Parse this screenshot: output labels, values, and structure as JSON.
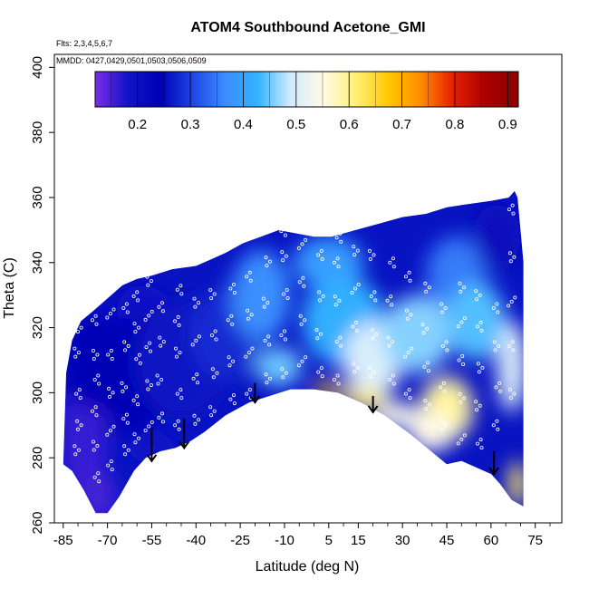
{
  "chart_data": {
    "type": "heatmap",
    "title": "ATOM4 Southbound Acetone_GMI",
    "notes": [
      "Flts: 2,3,4,5,6,7",
      "MMDD: 0427,0429,0501,0503,0506,0509"
    ],
    "xlabel": "Latitude (deg N)",
    "ylabel": "Theta (C)",
    "xlim": [
      -88,
      84
    ],
    "ylim": [
      260,
      404
    ],
    "xticks": [
      -85,
      -70,
      -55,
      -40,
      -25,
      -10,
      5,
      15,
      30,
      45,
      60,
      75
    ],
    "yticks": [
      260,
      280,
      300,
      320,
      340,
      360,
      380,
      400
    ],
    "colorbar": {
      "range": [
        0.12,
        0.92
      ],
      "ticks": [
        0.2,
        0.3,
        0.4,
        0.5,
        0.6,
        0.7,
        0.8,
        0.9
      ],
      "colors": [
        "#7a2ee8",
        "#1212c8",
        "#0000b4",
        "#1e46e6",
        "#3c8cff",
        "#32b4ff",
        "#d2ebff",
        "#fffae6",
        "#fff078",
        "#ffc800",
        "#ff8c00",
        "#e61e00",
        "#aa0000",
        "#8b0000"
      ]
    },
    "domain": {
      "bottom": [
        [
          -85,
          278
        ],
        [
          -82,
          276
        ],
        [
          -78,
          270
        ],
        [
          -74,
          263
        ],
        [
          -70,
          263
        ],
        [
          -66,
          268
        ],
        [
          -61,
          276
        ],
        [
          -57,
          280
        ],
        [
          -52,
          282
        ],
        [
          -47,
          283
        ],
        [
          -42,
          285
        ],
        [
          -37,
          288
        ],
        [
          -30,
          293
        ],
        [
          -22,
          297
        ],
        [
          -15,
          299
        ],
        [
          -8,
          301
        ],
        [
          0,
          301
        ],
        [
          8,
          300
        ],
        [
          16,
          297
        ],
        [
          24,
          293
        ],
        [
          33,
          287
        ],
        [
          41,
          281
        ],
        [
          45,
          278
        ],
        [
          50,
          279
        ],
        [
          55,
          277
        ],
        [
          60,
          275
        ],
        [
          63,
          272
        ],
        [
          67,
          267
        ],
        [
          71,
          265
        ]
      ],
      "top": [
        [
          -85,
          278
        ],
        [
          -84,
          306
        ],
        [
          -82,
          316
        ],
        [
          -79,
          322
        ],
        [
          -75,
          325
        ],
        [
          -70,
          329
        ],
        [
          -65,
          333
        ],
        [
          -60,
          335
        ],
        [
          -55,
          336
        ],
        [
          -48,
          338
        ],
        [
          -40,
          339
        ],
        [
          -35,
          341
        ],
        [
          -30,
          343
        ],
        [
          -24,
          346
        ],
        [
          -18,
          348
        ],
        [
          -12,
          350
        ],
        [
          -6,
          349
        ],
        [
          0,
          348
        ],
        [
          6,
          348
        ],
        [
          14,
          350
        ],
        [
          22,
          352
        ],
        [
          30,
          354
        ],
        [
          38,
          355
        ],
        [
          45,
          357
        ],
        [
          52,
          358
        ],
        [
          60,
          359
        ],
        [
          66,
          360
        ],
        [
          68,
          362
        ],
        [
          69,
          360
        ],
        [
          71,
          340
        ],
        [
          71,
          265
        ]
      ]
    },
    "field": [
      {
        "lat": -78,
        "theta": 285,
        "value": 0.16,
        "w": 8,
        "h": 18
      },
      {
        "lat": -73,
        "theta": 268,
        "value": 0.15,
        "w": 6,
        "h": 8
      },
      {
        "lat": -55,
        "theta": 283,
        "value": 0.18,
        "w": 6,
        "h": 4
      },
      {
        "lat": -58,
        "theta": 325,
        "value": 0.19,
        "w": 9,
        "h": 8
      },
      {
        "lat": -75,
        "theta": 310,
        "value": 0.24,
        "w": 10,
        "h": 15
      },
      {
        "lat": -62,
        "theta": 305,
        "value": 0.24,
        "w": 12,
        "h": 18
      },
      {
        "lat": -45,
        "theta": 310,
        "value": 0.26,
        "w": 16,
        "h": 18
      },
      {
        "lat": -30,
        "theta": 318,
        "value": 0.28,
        "w": 12,
        "h": 14
      },
      {
        "lat": -18,
        "theta": 330,
        "value": 0.37,
        "w": 10,
        "h": 14
      },
      {
        "lat": 5,
        "theta": 340,
        "value": 0.39,
        "w": 12,
        "h": 8
      },
      {
        "lat": 10,
        "theta": 322,
        "value": 0.42,
        "w": 14,
        "h": 14
      },
      {
        "lat": -12,
        "theta": 308,
        "value": 0.45,
        "w": 8,
        "h": 6
      },
      {
        "lat": 20,
        "theta": 310,
        "value": 0.5,
        "w": 10,
        "h": 12
      },
      {
        "lat": 35,
        "theta": 318,
        "value": 0.46,
        "w": 12,
        "h": 12
      },
      {
        "lat": 48,
        "theta": 336,
        "value": 0.35,
        "w": 10,
        "h": 12
      },
      {
        "lat": 62,
        "theta": 348,
        "value": 0.22,
        "w": 8,
        "h": 10
      },
      {
        "lat": 55,
        "theta": 322,
        "value": 0.44,
        "w": 10,
        "h": 12
      },
      {
        "lat": 67,
        "theta": 308,
        "value": 0.5,
        "w": 5,
        "h": 14
      },
      {
        "lat": 45,
        "theta": 295,
        "value": 0.59,
        "w": 9,
        "h": 10
      },
      {
        "lat": 40,
        "theta": 288,
        "value": 0.55,
        "w": 8,
        "h": 6
      },
      {
        "lat": 69,
        "theta": 272,
        "value": 0.62,
        "w": 3,
        "h": 7
      },
      {
        "lat": 5,
        "theta": 301,
        "value": 0.68,
        "w": 6,
        "h": 2
      },
      {
        "lat": 17,
        "theta": 298,
        "value": 0.62,
        "w": 8,
        "h": 3
      },
      {
        "lat": 28,
        "theta": 293,
        "value": 0.54,
        "w": 8,
        "h": 4
      }
    ],
    "flight_points": [
      {
        "lat": -80,
        "theta": [
          282,
          290,
          300,
          312,
          320
        ]
      },
      {
        "lat": -74,
        "theta": [
          274,
          284,
          294,
          304,
          312,
          322
        ]
      },
      {
        "lat": -69,
        "theta": [
          278,
          288,
          300,
          312,
          324,
          332
        ]
      },
      {
        "lat": -64,
        "theta": [
          282,
          292,
          302,
          314,
          326
        ]
      },
      {
        "lat": -60,
        "theta": [
          286,
          298,
          310,
          320,
          330
        ]
      },
      {
        "lat": -56,
        "theta": [
          290,
          302,
          314,
          324,
          334
        ]
      },
      {
        "lat": -52,
        "theta": [
          292,
          304,
          316,
          326
        ]
      },
      {
        "lat": -46,
        "theta": [
          290,
          300,
          312,
          322,
          332
        ]
      },
      {
        "lat": -40,
        "theta": [
          292,
          304,
          316,
          328
        ]
      },
      {
        "lat": -34,
        "theta": [
          294,
          306,
          318,
          330
        ]
      },
      {
        "lat": -28,
        "theta": [
          298,
          310,
          322,
          332
        ]
      },
      {
        "lat": -22,
        "theta": [
          300,
          312,
          324,
          336
        ]
      },
      {
        "lat": -16,
        "theta": [
          304,
          316,
          328,
          340
        ]
      },
      {
        "lat": -10,
        "theta": [
          306,
          318,
          330,
          342,
          350
        ]
      },
      {
        "lat": -4,
        "theta": [
          310,
          322,
          334,
          346
        ]
      },
      {
        "lat": 2,
        "theta": [
          306,
          318,
          330,
          342
        ]
      },
      {
        "lat": 8,
        "theta": [
          304,
          316,
          328,
          340,
          348
        ]
      },
      {
        "lat": 14,
        "theta": [
          308,
          320,
          332,
          344
        ]
      },
      {
        "lat": 20,
        "theta": [
          306,
          318,
          330,
          342
        ]
      },
      {
        "lat": 26,
        "theta": [
          304,
          316,
          328,
          340
        ]
      },
      {
        "lat": 32,
        "theta": [
          300,
          312,
          324,
          336
        ]
      },
      {
        "lat": 38,
        "theta": [
          296,
          308,
          320,
          332
        ]
      },
      {
        "lat": 44,
        "theta": [
          290,
          302,
          314,
          326
        ]
      },
      {
        "lat": 50,
        "theta": [
          286,
          298,
          310,
          322,
          332
        ]
      },
      {
        "lat": 56,
        "theta": [
          284,
          296,
          308,
          320,
          330
        ]
      },
      {
        "lat": 62,
        "theta": [
          290,
          302,
          314,
          326
        ]
      },
      {
        "lat": 67,
        "theta": [
          300,
          314,
          328,
          342,
          356
        ]
      }
    ],
    "arrows": [
      {
        "lat": -55,
        "theta_top": 289,
        "theta_bottom": 279
      },
      {
        "lat": -44,
        "theta_top": 292,
        "theta_bottom": 283
      },
      {
        "lat": -20,
        "theta_top": 303,
        "theta_bottom": 297
      },
      {
        "lat": 20,
        "theta_top": 299,
        "theta_bottom": 294
      },
      {
        "lat": 61,
        "theta_top": 282,
        "theta_bottom": 275
      }
    ]
  }
}
